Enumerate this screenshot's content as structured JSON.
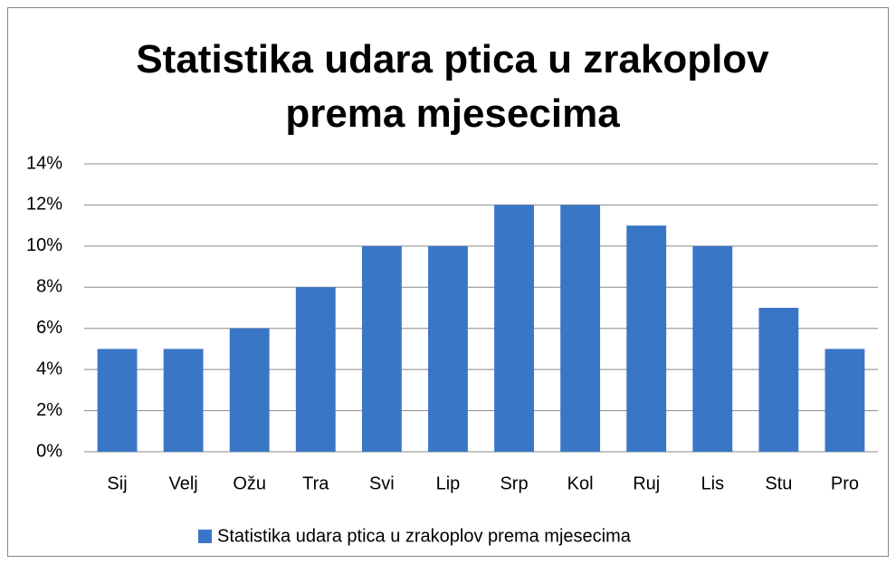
{
  "chart_data": {
    "type": "bar",
    "title": "Statistika udara ptica u zrakoplov prema mjesecima",
    "categories": [
      "Sij",
      "Velj",
      "Ožu",
      "Tra",
      "Svi",
      "Lip",
      "Srp",
      "Kol",
      "Ruj",
      "Lis",
      "Stu",
      "Pro"
    ],
    "series": [
      {
        "name": "Statistika udara ptica u zrakoplov prema mjesecima",
        "color": "#3a76c6",
        "values": [
          5,
          5,
          6,
          8,
          10,
          10,
          12,
          12,
          11,
          10,
          7,
          5
        ]
      }
    ],
    "ylim": [
      0,
      14
    ],
    "yticks": [
      {
        "value": 0,
        "label": "0%"
      },
      {
        "value": 2,
        "label": "2%"
      },
      {
        "value": 4,
        "label": "4%"
      },
      {
        "value": 6,
        "label": "6%"
      },
      {
        "value": 8,
        "label": "8%"
      },
      {
        "value": 10,
        "label": "10%"
      },
      {
        "value": 12,
        "label": "12%"
      },
      {
        "value": 14,
        "label": "14%"
      }
    ],
    "grid": true,
    "legend": "bottom"
  }
}
